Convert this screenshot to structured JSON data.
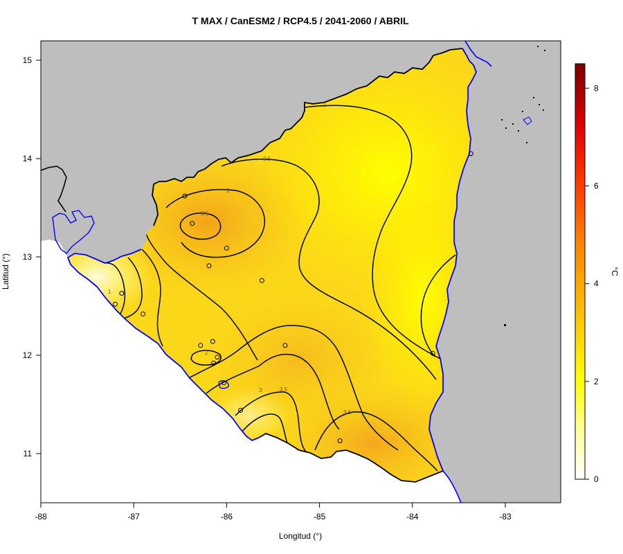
{
  "title": "T MAX / CanESM2 / RCP4.5 / 2041-2060 / ABRIL",
  "axes": {
    "xlabel": "Longitud (°)",
    "ylabel": "Latitud (°)",
    "x_ticks": [
      "-88",
      "-87",
      "-86",
      "-85",
      "-84",
      "-83"
    ],
    "y_ticks": [
      "11",
      "12",
      "13",
      "14",
      "15"
    ]
  },
  "colorbar": {
    "unit": "°C",
    "ticks": [
      "0",
      "2",
      "4",
      "6",
      "8"
    ],
    "range": [
      0,
      8.5
    ]
  },
  "contour_labels": [
    "1",
    "2",
    "2",
    "2.5",
    "3",
    "3",
    "3.5",
    "3.5",
    "3.5"
  ],
  "colors": {
    "land_background": "#bebebe",
    "coastline": "#0000ff",
    "country_border": "#000000",
    "contour_line": "#000000"
  },
  "chart_data": {
    "type": "heatmap",
    "title": "T MAX / CanESM2 / RCP4.5 / 2041-2060 / ABRIL",
    "xlabel": "Longitud (°)",
    "ylabel": "Latitud (°)",
    "xlim": [
      -88,
      -82.4
    ],
    "ylim": [
      10.5,
      15.2
    ],
    "value_unit": "°C",
    "color_range": [
      0,
      8.5
    ],
    "contour_levels": [
      1,
      2,
      2.5,
      3,
      3.5
    ],
    "stations": [
      {
        "lon": -86.45,
        "lat": 13.62
      },
      {
        "lon": -86.37,
        "lat": 13.34
      },
      {
        "lon": -86.0,
        "lat": 13.09
      },
      {
        "lon": -86.19,
        "lat": 12.91
      },
      {
        "lon": -85.62,
        "lat": 12.76
      },
      {
        "lon": -87.13,
        "lat": 12.63
      },
      {
        "lon": -87.2,
        "lat": 12.52
      },
      {
        "lon": -86.9,
        "lat": 12.42
      },
      {
        "lon": -86.15,
        "lat": 12.14
      },
      {
        "lon": -86.28,
        "lat": 12.1
      },
      {
        "lon": -85.37,
        "lat": 12.1
      },
      {
        "lon": -86.1,
        "lat": 11.98
      },
      {
        "lon": -86.14,
        "lat": 11.92
      },
      {
        "lon": -86.03,
        "lat": 11.72
      },
      {
        "lon": -85.85,
        "lat": 11.44
      },
      {
        "lon": -84.78,
        "lat": 11.13
      },
      {
        "lon": -83.78,
        "lat": 12.02
      },
      {
        "lon": -83.37,
        "lat": 14.05
      }
    ]
  }
}
